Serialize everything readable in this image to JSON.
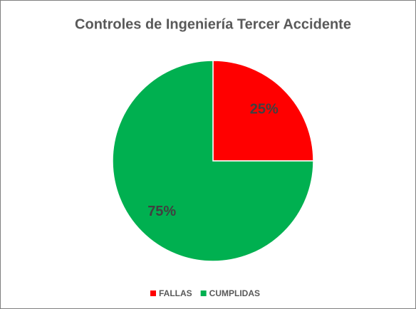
{
  "chart_data": {
    "type": "pie",
    "title": "Controles de Ingeniería Tercer Accidente",
    "categories": [
      "FALLAS",
      "CUMPLIDAS"
    ],
    "values": [
      25,
      75
    ],
    "value_labels": [
      "25%",
      "75%"
    ],
    "colors": [
      "#ff0000",
      "#00b050"
    ],
    "legend": "bottom"
  }
}
